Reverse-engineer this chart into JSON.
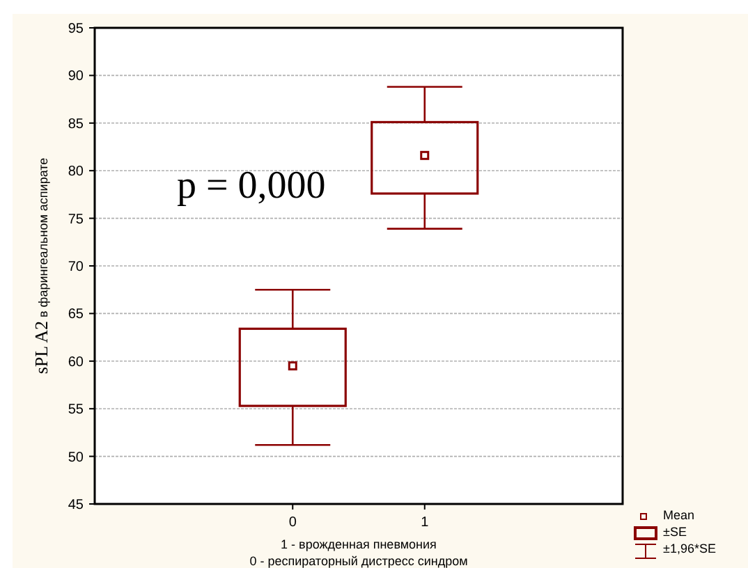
{
  "chart_data": {
    "type": "box",
    "categories": [
      "0",
      "1"
    ],
    "xlabel": "1 - врожденная пневмония\n0 - респираторный дистресс синдром",
    "ylabel": "sPL A2  в фарингеальном аспирате",
    "ylim": [
      45,
      95
    ],
    "yticks": [
      45,
      50,
      55,
      60,
      65,
      70,
      75,
      80,
      85,
      90,
      95
    ],
    "grid": "y",
    "series": [
      {
        "color": "#8b0000",
        "boxes": [
          {
            "low": 51.2,
            "q1": 55.3,
            "q3": 63.4,
            "high": 67.5,
            "mean": 59.5
          },
          {
            "low": 73.9,
            "q1": 77.6,
            "q3": 85.1,
            "high": 88.8,
            "mean": 81.6
          }
        ]
      }
    ],
    "annotations": [
      "p = 0,000",
      "Mean",
      "±SE",
      "±1,96*SE"
    ]
  }
}
